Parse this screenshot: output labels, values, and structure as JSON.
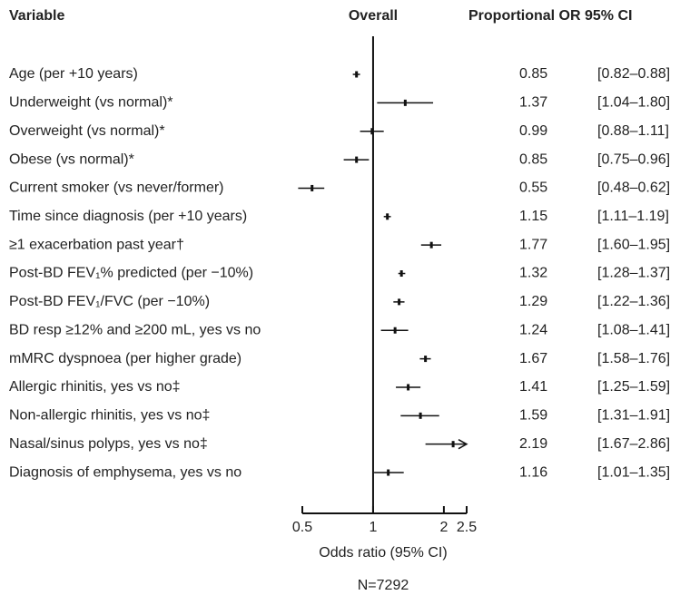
{
  "chart_data": {
    "type": "forest",
    "headers": [
      "Variable",
      "Overall",
      "Proportional OR 95% CI"
    ],
    "x_label": "Odds ratio (95% CI)",
    "footnote": "N=7292",
    "categories": [
      "Age (per +10 years)",
      "Underweight (vs normal)*",
      "Overweight (vs normal)*",
      "Obese (vs normal)*",
      "Current smoker (vs never/former)",
      "Time since diagnosis (per +10 years)",
      "≥1 exacerbation past year†",
      "Post-BD FEV₁% predicted (per −10%)",
      "Post-BD FEV₁/FVC (per −10%)",
      "BD resp ≥12% and ≥200 mL, yes vs no",
      "mMRC dyspnoea (per higher grade)",
      "Allergic rhinitis, yes vs no‡",
      "Non-allergic rhinitis, yes vs no‡",
      "Nasal/sinus polyps, yes vs no‡",
      "Diagnosis of emphysema, yes vs no"
    ],
    "values": [
      0.85,
      1.37,
      0.99,
      0.85,
      0.55,
      1.15,
      1.77,
      1.32,
      1.29,
      1.24,
      1.67,
      1.41,
      1.59,
      2.19,
      1.16
    ],
    "lower": [
      0.82,
      1.04,
      0.88,
      0.75,
      0.48,
      1.11,
      1.6,
      1.28,
      1.22,
      1.08,
      1.58,
      1.25,
      1.31,
      1.67,
      1.01
    ],
    "upper": [
      0.88,
      1.8,
      1.11,
      0.96,
      0.62,
      1.19,
      1.95,
      1.37,
      1.36,
      1.41,
      1.76,
      1.59,
      1.91,
      2.86,
      1.35
    ],
    "ci_labels": [
      "[0.82–0.88]",
      "[1.04–1.80]",
      "[0.88–1.11]",
      "[0.75–0.96]",
      "[0.48–0.62]",
      "[1.11–1.19]",
      "[1.60–1.95]",
      "[1.28–1.37]",
      "[1.22–1.36]",
      "[1.08–1.41]",
      "[1.58–1.76]",
      "[1.25–1.59]",
      "[1.31–1.91]",
      "[1.67–2.86]",
      "[1.01–1.35]"
    ],
    "color": "#111111",
    "log_x": true,
    "reference_line": 1,
    "xlim": [
      0.5,
      2.5
    ],
    "xticks": [
      0.5,
      1,
      2,
      2.5
    ]
  }
}
